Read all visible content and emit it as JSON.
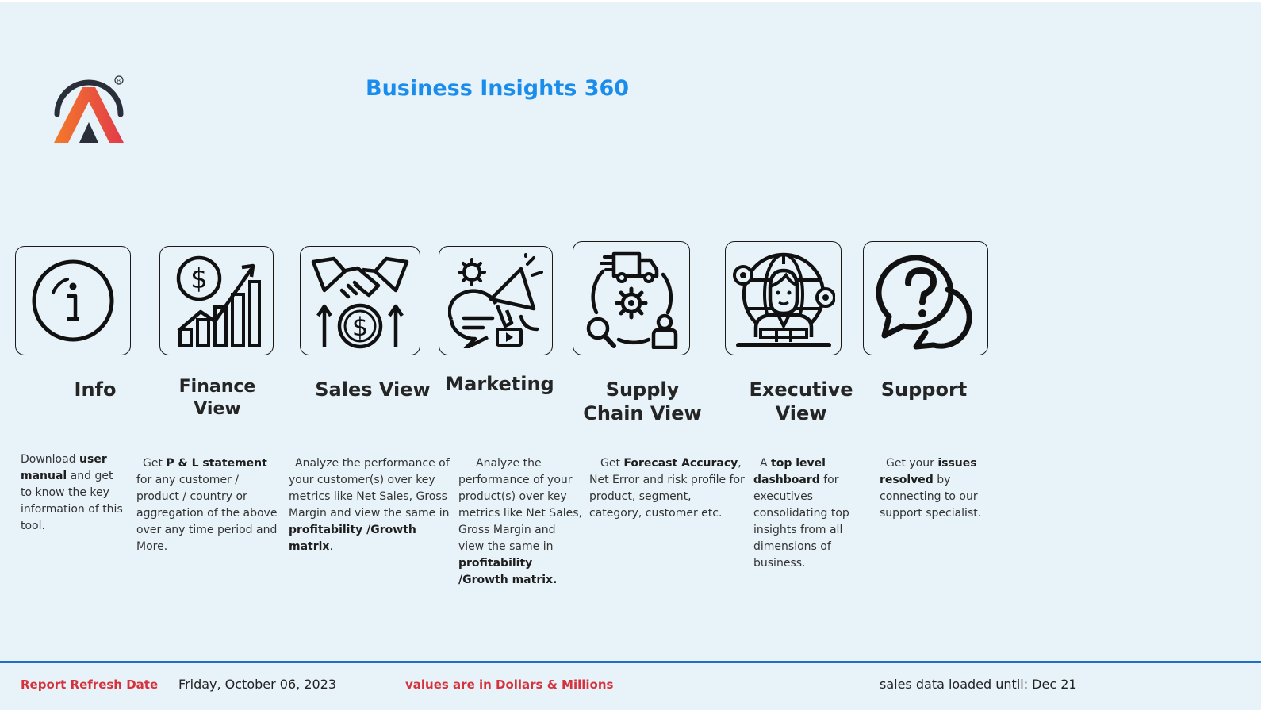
{
  "header": {
    "title": "Business Insights 360"
  },
  "colors": {
    "accent": "#1a8cec",
    "alert_red": "#d6323c",
    "divider": "#1f6fc2",
    "background": "#e7f2f9"
  },
  "nav": [
    {
      "id": "info",
      "icon": "info-icon",
      "label": "Info",
      "desc": {
        "pre": "Download ",
        "bold": "user manual",
        "post": " and get to know the key information of this tool."
      }
    },
    {
      "id": "finance",
      "icon": "finance-chart-icon",
      "label": "Finance View",
      "desc": {
        "pre": "Get  ",
        "bold": "P & L statement",
        "post": " for any customer / product / country or aggregation of the above over any time period and More."
      }
    },
    {
      "id": "sales",
      "icon": "handshake-money-icon",
      "label": "Sales View",
      "desc": {
        "pre": "Analyze the performance of your customer(s) over key metrics like Net Sales, Gross Margin and view the same in ",
        "bold": "profitability /Growth matrix",
        "post": "."
      }
    },
    {
      "id": "marketing",
      "icon": "megaphone-icon",
      "label": "Marketing",
      "desc": {
        "pre": "Analyze the performance of your product(s) over key metrics like Net Sales, Gross Margin and view the same in ",
        "bold": "profitability /Growth matrix.",
        "post": ""
      }
    },
    {
      "id": "supply",
      "icon": "supply-chain-icon",
      "label": "Supply Chain View",
      "desc": {
        "pre": "Get ",
        "bold": "Forecast Accuracy",
        "post": ", Net Error and risk profile for product, segment, category, customer etc."
      }
    },
    {
      "id": "executive",
      "icon": "executive-icon",
      "label": "Executive View",
      "desc": {
        "pre": "A ",
        "bold": "top level dashboard",
        "post": " for executives consolidating top insights from all dimensions of business."
      }
    },
    {
      "id": "support",
      "icon": "support-chat-icon",
      "label": "Support",
      "desc": {
        "pre": "Get your ",
        "bold": "issues resolved",
        "post": " by connecting to our support specialist."
      }
    }
  ],
  "footer": {
    "refresh_label": "Report Refresh Date",
    "refresh_date": "Friday, October 06, 2023",
    "units_note": "values are in Dollars & Millions",
    "loaded_label": "sales data loaded until:  Dec 21"
  }
}
